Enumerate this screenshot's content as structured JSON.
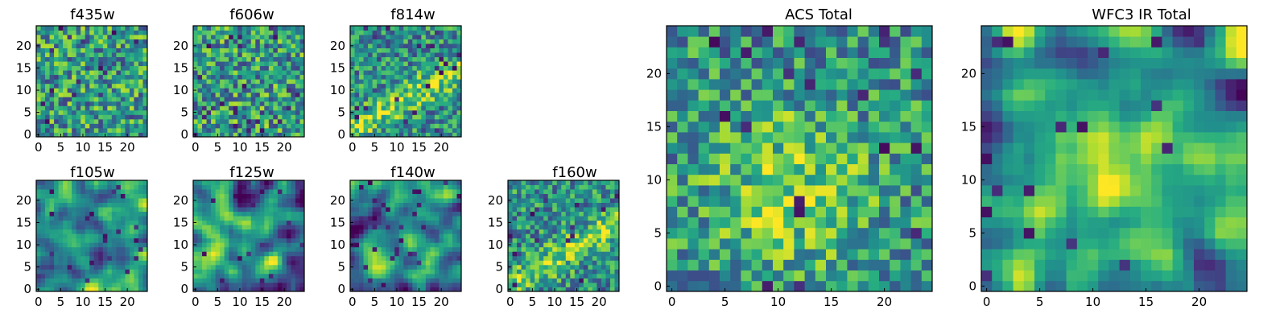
{
  "figure": {
    "colors": {
      "axis": "#000000",
      "background": "#ffffff"
    },
    "colormap": "viridis",
    "tick_values": [
      0,
      5,
      10,
      15,
      20
    ]
  },
  "chart_data": [
    {
      "type": "heatmap",
      "title": "f435w",
      "grid_size": 25,
      "xlim": [
        0,
        24
      ],
      "ylim": [
        0,
        24
      ],
      "xticks": [
        "0",
        "5",
        "10",
        "15",
        "20"
      ],
      "yticks": [
        "0",
        "5",
        "10",
        "15",
        "20"
      ],
      "seed": 11,
      "mode": "noise"
    },
    {
      "type": "heatmap",
      "title": "f606w",
      "grid_size": 25,
      "xlim": [
        0,
        24
      ],
      "ylim": [
        0,
        24
      ],
      "xticks": [
        "0",
        "5",
        "10",
        "15",
        "20"
      ],
      "yticks": [
        "0",
        "5",
        "10",
        "15",
        "20"
      ],
      "seed": 23,
      "mode": "noise"
    },
    {
      "type": "heatmap",
      "title": "f814w",
      "grid_size": 25,
      "xlim": [
        0,
        24
      ],
      "ylim": [
        0,
        24
      ],
      "xticks": [
        "0",
        "5",
        "10",
        "15",
        "20"
      ],
      "yticks": [
        "0",
        "5",
        "10",
        "15",
        "20"
      ],
      "seed": 37,
      "mode": "streak"
    },
    {
      "type": "heatmap",
      "title": "f105w",
      "grid_size": 25,
      "xlim": [
        0,
        24
      ],
      "ylim": [
        0,
        24
      ],
      "xticks": [
        "0",
        "5",
        "10",
        "15",
        "20"
      ],
      "yticks": [
        "0",
        "5",
        "10",
        "15",
        "20"
      ],
      "seed": 41,
      "mode": "smooth"
    },
    {
      "type": "heatmap",
      "title": "f125w",
      "grid_size": 25,
      "xlim": [
        0,
        24
      ],
      "ylim": [
        0,
        24
      ],
      "xticks": [
        "0",
        "5",
        "10",
        "15",
        "20"
      ],
      "yticks": [
        "0",
        "5",
        "10",
        "15",
        "20"
      ],
      "seed": 53,
      "mode": "smooth"
    },
    {
      "type": "heatmap",
      "title": "f140w",
      "grid_size": 25,
      "xlim": [
        0,
        24
      ],
      "ylim": [
        0,
        24
      ],
      "xticks": [
        "0",
        "5",
        "10",
        "15",
        "20"
      ],
      "yticks": [
        "0",
        "5",
        "10",
        "15",
        "20"
      ],
      "seed": 67,
      "mode": "smooth"
    },
    {
      "type": "heatmap",
      "title": "f160w",
      "grid_size": 25,
      "xlim": [
        0,
        24
      ],
      "ylim": [
        0,
        24
      ],
      "xticks": [
        "0",
        "5",
        "10",
        "15",
        "20"
      ],
      "yticks": [
        "0",
        "5",
        "10",
        "15",
        "20"
      ],
      "seed": 79,
      "mode": "streak"
    },
    {
      "type": "heatmap",
      "title": "ACS Total",
      "grid_size": 25,
      "xlim": [
        0,
        24
      ],
      "ylim": [
        0,
        24
      ],
      "xticks": [
        "0",
        "5",
        "10",
        "15",
        "20"
      ],
      "yticks": [
        "0",
        "5",
        "10",
        "15",
        "20"
      ],
      "seed": 97,
      "mode": "blob"
    },
    {
      "type": "heatmap",
      "title": "WFC3 IR Total",
      "grid_size": 25,
      "xlim": [
        0,
        24
      ],
      "ylim": [
        0,
        24
      ],
      "xticks": [
        "0",
        "5",
        "10",
        "15",
        "20"
      ],
      "yticks": [
        "0",
        "5",
        "10",
        "15",
        "20"
      ],
      "seed": 113,
      "mode": "blob-smooth"
    }
  ]
}
